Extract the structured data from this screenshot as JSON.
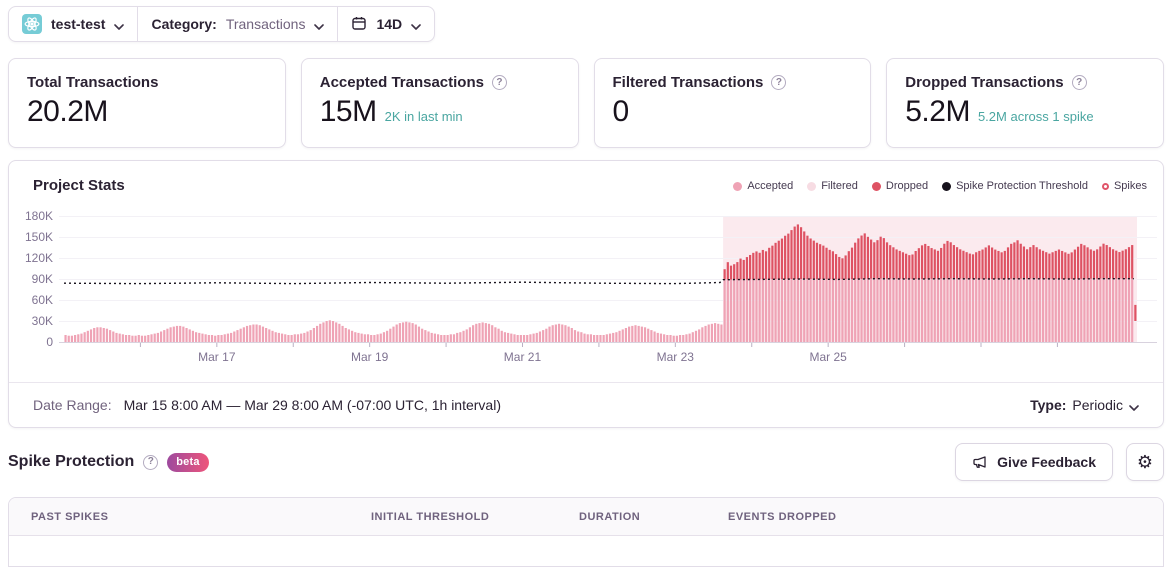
{
  "topbar": {
    "project": "test-test",
    "category_label": "Category:",
    "category_value": "Transactions",
    "range": "14D"
  },
  "cards": [
    {
      "title": "Total Transactions",
      "value": "20.2M",
      "subtext": ""
    },
    {
      "title": "Accepted Transactions",
      "value": "15M",
      "subtext": "2K in last min"
    },
    {
      "title": "Filtered Transactions",
      "value": "0",
      "subtext": ""
    },
    {
      "title": "Dropped Transactions",
      "value": "5.2M",
      "subtext": "5.2M across 1 spike"
    }
  ],
  "date_range": {
    "label": "Date Range:",
    "value": "Mar 15 8:00 AM — Mar 29 8:00 AM (-07:00 UTC, 1h interval)",
    "type_label": "Type:",
    "type_value": "Periodic"
  },
  "spike_section": {
    "title": "Spike Protection",
    "beta_label": "beta",
    "feedback_label": "Give Feedback"
  },
  "table": {
    "headers": [
      "PAST SPIKES",
      "INITIAL THRESHOLD",
      "DURATION",
      "EVENTS DROPPED"
    ]
  },
  "colors": {
    "bar_accepted": "#efa3b5",
    "bar_dropped": "#de5263",
    "bar_filtered": "#f7dce3",
    "threshold_line": "#17121c",
    "spike_region_bg": "#fbeaee",
    "spike_ring": "#e0556a",
    "subtext_teal": "#4aa6a1",
    "beta_gradient_start": "#9d4a9e",
    "beta_gradient_end": "#ee557b"
  },
  "chart_data": {
    "type": "bar",
    "title": "Project Stats",
    "x_unit": "1h interval bars, Mar 15 – Mar 29",
    "ylim_k": [
      0,
      180
    ],
    "y_ticks": [
      "180K",
      "150K",
      "120K",
      "90K",
      "60K",
      "30K",
      "0"
    ],
    "x_axis_labels": [
      {
        "hour": 48,
        "label": "Mar 17"
      },
      {
        "hour": 96,
        "label": "Mar 19"
      },
      {
        "hour": 144,
        "label": "Mar 21"
      },
      {
        "hour": 192,
        "label": "Mar 23"
      },
      {
        "hour": 240,
        "label": "Mar 25"
      }
    ],
    "x_axis_day_ticks": [
      24,
      48,
      72,
      96,
      120,
      144,
      168,
      192,
      216,
      240,
      264,
      288,
      312
    ],
    "legend": [
      {
        "label": "Accepted",
        "marker": "dot",
        "color": "#efa3b5"
      },
      {
        "label": "Filtered",
        "marker": "dot",
        "color": "#f7dce3"
      },
      {
        "label": "Dropped",
        "marker": "dot",
        "color": "#de5263"
      },
      {
        "label": "Spike Protection Threshold",
        "marker": "dot",
        "color": "#17121c"
      },
      {
        "label": "Spikes",
        "marker": "ring",
        "color": "#e0556a"
      }
    ],
    "filtered_values_all": 0,
    "spike_region": {
      "start_hour": 207,
      "end_hour": 337,
      "color": "#fbeaee"
    },
    "series_accepted_pre_spike_k": [
      10,
      9,
      9,
      10,
      11,
      12,
      14,
      16,
      18,
      20,
      21,
      21,
      20,
      19,
      17,
      15,
      13,
      12,
      11,
      10,
      10,
      9,
      9,
      10,
      9,
      9,
      10,
      11,
      12,
      13,
      15,
      17,
      19,
      21,
      22,
      23,
      23,
      22,
      20,
      18,
      16,
      14,
      13,
      12,
      11,
      10,
      10,
      9,
      10,
      10,
      11,
      12,
      13,
      15,
      17,
      19,
      21,
      23,
      24,
      25,
      25,
      24,
      22,
      20,
      18,
      16,
      14,
      13,
      12,
      11,
      10,
      10,
      11,
      11,
      12,
      13,
      15,
      17,
      20,
      23,
      26,
      28,
      30,
      31,
      30,
      28,
      26,
      23,
      20,
      18,
      16,
      14,
      13,
      12,
      11,
      11,
      10,
      10,
      11,
      12,
      14,
      16,
      19,
      22,
      25,
      27,
      28,
      29,
      28,
      27,
      25,
      22,
      19,
      17,
      15,
      13,
      12,
      11,
      10,
      10,
      10,
      11,
      11,
      13,
      14,
      16,
      18,
      21,
      24,
      26,
      27,
      28,
      27,
      26,
      24,
      21,
      19,
      16,
      14,
      13,
      12,
      11,
      10,
      10,
      10,
      10,
      11,
      12,
      13,
      15,
      17,
      19,
      22,
      24,
      25,
      26,
      25,
      24,
      22,
      20,
      17,
      15,
      14,
      12,
      11,
      11,
      10,
      10,
      10,
      10,
      11,
      12,
      13,
      14,
      16,
      18,
      20,
      22,
      23,
      24,
      23,
      22,
      21,
      19,
      17,
      15,
      13,
      12,
      11,
      10,
      10,
      9,
      9,
      10,
      10,
      11,
      12,
      14,
      16,
      18,
      21,
      23,
      25,
      26,
      27,
      26,
      25
    ],
    "series_dropped_spike_k": [
      15,
      25,
      20,
      22,
      25,
      30,
      28,
      32,
      35,
      38,
      40,
      38,
      42,
      40,
      45,
      48,
      52,
      55,
      58,
      62,
      65,
      70,
      75,
      78,
      74,
      68,
      62,
      58,
      55,
      52,
      50,
      48,
      45,
      42,
      40,
      36,
      32,
      30,
      34,
      40,
      45,
      52,
      58,
      62,
      65,
      60,
      56,
      52,
      55,
      60,
      58,
      52,
      48,
      45,
      42,
      40,
      38,
      36,
      34,
      35,
      40,
      44,
      48,
      50,
      47,
      44,
      42,
      40,
      44,
      50,
      54,
      52,
      48,
      45,
      42,
      40,
      38,
      36,
      35,
      38,
      40,
      42,
      45,
      48,
      45,
      42,
      40,
      38,
      40,
      45,
      50,
      52,
      55,
      50,
      46,
      42,
      45,
      48,
      45,
      42,
      40,
      38,
      36,
      38,
      40,
      42,
      40,
      38,
      36,
      38,
      42,
      46,
      50,
      48,
      45,
      42,
      40,
      42,
      46,
      50,
      48,
      45,
      42,
      40,
      38,
      40,
      42,
      45,
      48
    ],
    "accepted_in_spike": "capped at threshold",
    "threshold": {
      "name": "Spike Protection Threshold",
      "color": "#17121c",
      "points_hour_k": [
        [
          0,
          84
        ],
        [
          24,
          83.5
        ],
        [
          48,
          84.5
        ],
        [
          72,
          83.5
        ],
        [
          96,
          85
        ],
        [
          120,
          84
        ],
        [
          144,
          85.5
        ],
        [
          168,
          84
        ],
        [
          192,
          83.5
        ],
        [
          206,
          85
        ],
        [
          207,
          89
        ],
        [
          219,
          89.5
        ],
        [
          231,
          90
        ],
        [
          243,
          89.5
        ],
        [
          255,
          90.5
        ],
        [
          267,
          90
        ],
        [
          279,
          90.5
        ],
        [
          291,
          90
        ],
        [
          303,
          90.5
        ],
        [
          315,
          90
        ],
        [
          327,
          90.5
        ],
        [
          336,
          90.5
        ]
      ]
    },
    "now_bar": {
      "hour": 336,
      "from_k": 30,
      "to_k": 53
    }
  }
}
